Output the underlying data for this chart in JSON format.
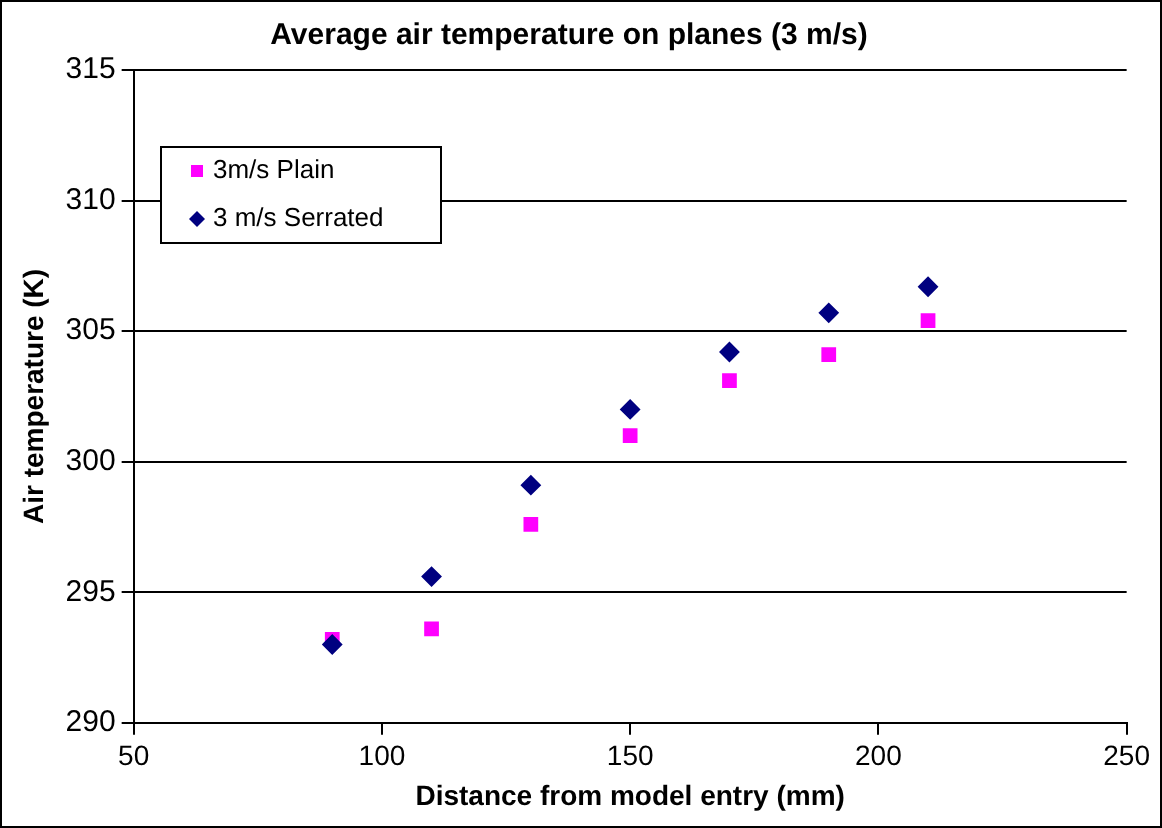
{
  "chart_data": {
    "type": "scatter",
    "title": "Average air temperature on planes (3 m/s)",
    "xlabel": "Distance from model entry (mm)",
    "ylabel": "Air temperature (K)",
    "x": [
      90,
      110,
      130,
      150,
      170,
      190,
      210
    ],
    "series": [
      {
        "name": "3m/s Plain",
        "color": "#ff00ff",
        "marker": "square",
        "values": [
          293.2,
          293.6,
          297.6,
          301.0,
          303.1,
          304.1,
          305.4
        ]
      },
      {
        "name": "3 m/s Serrated",
        "color": "#000080",
        "marker": "diamond",
        "values": [
          293.0,
          295.6,
          299.1,
          302.0,
          304.2,
          305.7,
          306.7
        ]
      }
    ],
    "xlim": [
      50,
      250
    ],
    "xticks": [
      50,
      100,
      150,
      200,
      250
    ],
    "ylim": [
      290,
      315
    ],
    "yticks": [
      290,
      295,
      300,
      305,
      310,
      315
    ],
    "grid": "y",
    "legend": "top left"
  }
}
